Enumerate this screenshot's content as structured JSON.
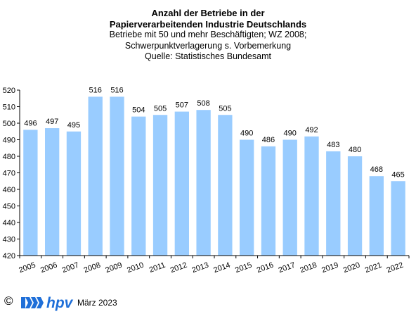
{
  "chart_data": {
    "type": "bar",
    "title_lines": [
      "Anzahl der Betriebe in der",
      "Papierverarbeitenden Industrie Deutschlands"
    ],
    "subtitle_lines": [
      "Betriebe mit 50 und mehr Beschäftigten;  WZ 2008;",
      "Schwerpunktverlagerung   s. Vorbemerkung",
      "Quelle:  Statistisches Bundesamt"
    ],
    "categories": [
      "2005",
      "2006",
      "2007",
      "2008",
      "2009",
      "2010",
      "2011",
      "2012",
      "2013",
      "2014",
      "2015",
      "2016",
      "2017",
      "2018",
      "2019",
      "2020",
      "2021",
      "2022"
    ],
    "values": [
      496,
      497,
      495,
      516,
      516,
      504,
      505,
      507,
      508,
      505,
      490,
      486,
      490,
      492,
      483,
      480,
      468,
      465
    ],
    "data_labels": [
      "496",
      "497",
      "495",
      "516",
      "516",
      "504",
      "505",
      "507",
      "508",
      "505",
      "490",
      "486",
      "490",
      "492",
      "483",
      "480",
      "468",
      "465"
    ],
    "ylim": [
      420,
      520
    ],
    "yticks": [
      420,
      430,
      440,
      450,
      460,
      470,
      480,
      490,
      500,
      510,
      520
    ],
    "bar_color": "#99ccff",
    "grid": false,
    "xlabel": "",
    "ylabel": ""
  },
  "footer": {
    "copyright": "©",
    "logo_text": "hpv",
    "logo_color": "#1f6fd8",
    "date": "März 2023"
  }
}
